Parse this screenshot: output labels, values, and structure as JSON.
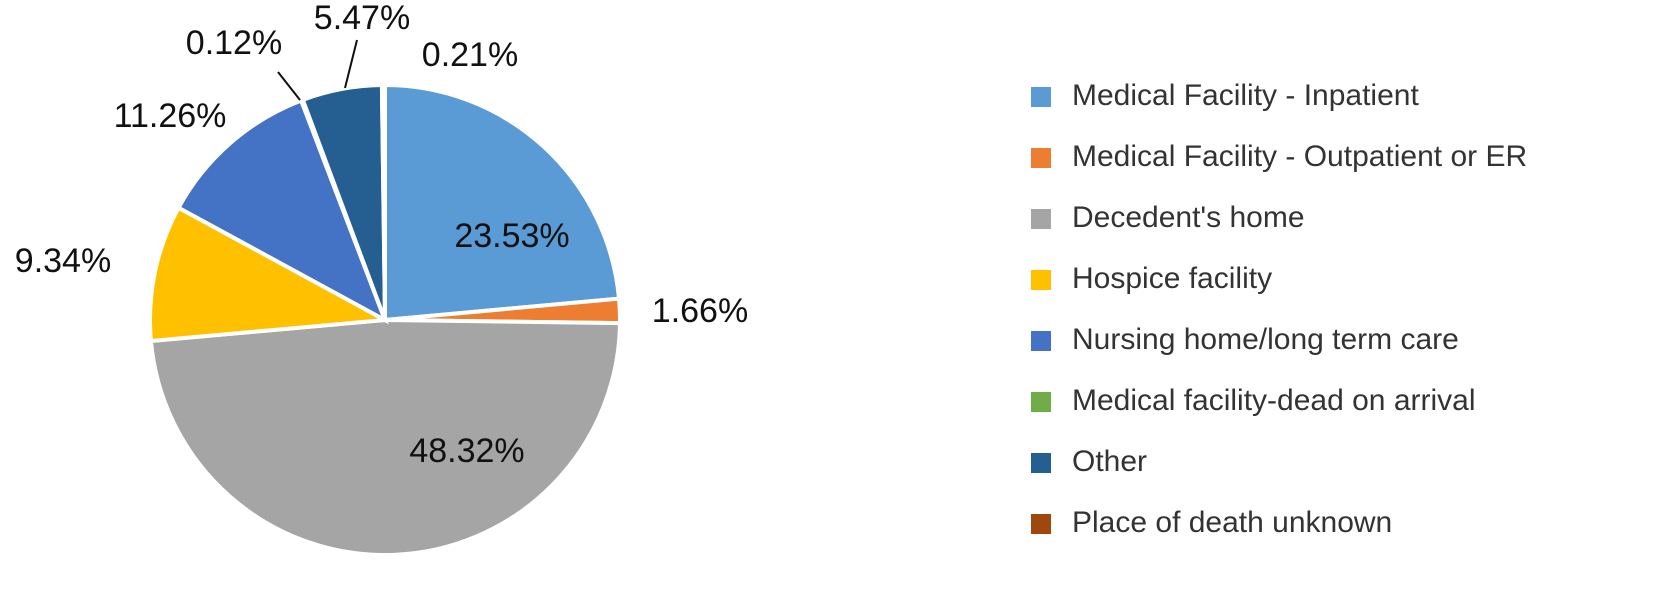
{
  "chart_data": {
    "type": "pie",
    "categories": [
      "Medical Facility - Inpatient",
      "Medical Facility - Outpatient or ER",
      "Decedent's home",
      "Hospice facility",
      "Nursing home/long term care",
      "Medical facility-dead on arrival",
      "Other",
      "Place of death unknown"
    ],
    "values": [
      23.53,
      1.66,
      48.32,
      9.34,
      11.26,
      0.12,
      5.47,
      0.21
    ],
    "value_labels": [
      "23.53%",
      "1.66%",
      "48.32%",
      "9.34%",
      "11.26%",
      "0.12%",
      "5.47%",
      "0.21%"
    ],
    "colors": [
      "#5b9bd5",
      "#ed7d31",
      "#a5a5a5",
      "#ffc000",
      "#4472c4",
      "#70ad47",
      "#255e91",
      "#9e480e"
    ],
    "legend": "right"
  }
}
